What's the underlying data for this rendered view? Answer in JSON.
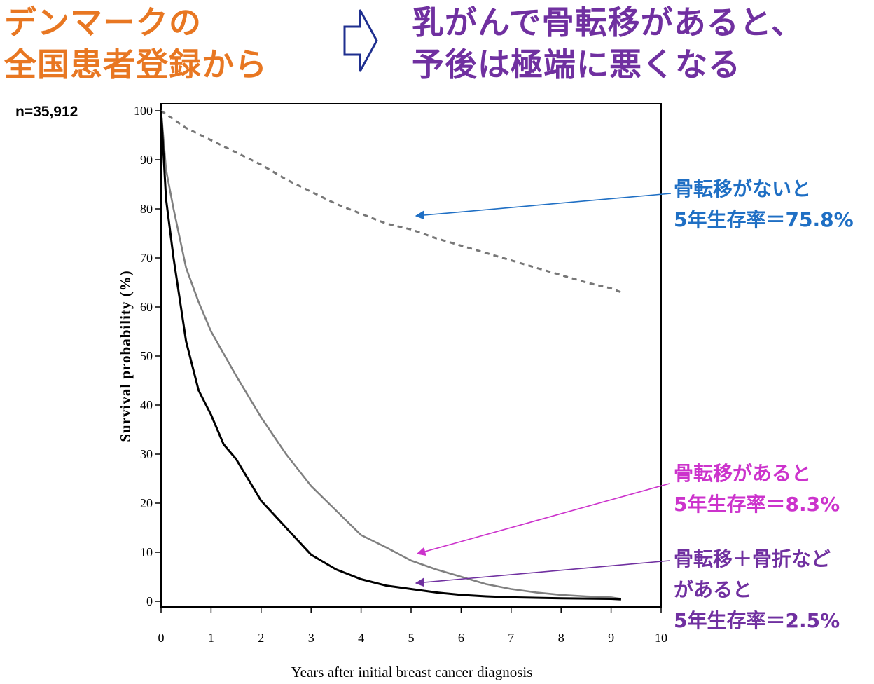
{
  "header": {
    "left_title_line1": "デンマークの",
    "left_title_line2": "全国患者登録から",
    "right_title_line1": "乳がんで骨転移があると、",
    "right_title_line2": "予後は極端に悪くなる",
    "arrow_icon": "outline-right-arrow-icon"
  },
  "sample_size": "n=35,912",
  "annotations": {
    "no_bone_mets": {
      "line1": "骨転移がないと",
      "line2": "5年生存率＝75.8%",
      "color": "#1f6fc4"
    },
    "bone_mets": {
      "line1": "骨転移があると",
      "line2": "5年生存率＝8.3%",
      "color": "#cc33cc"
    },
    "bone_mets_sre": {
      "line1": "骨転移＋骨折など",
      "line2": "があると",
      "line3": "5年生存率＝2.5%",
      "color": "#7030a0"
    }
  },
  "chart_data": {
    "type": "line",
    "xlabel": "Years after initial breast cancer diagnosis",
    "ylabel": "Survival probability (%)",
    "xlim": [
      0,
      10
    ],
    "ylim": [
      0,
      100
    ],
    "x_ticks": [
      0,
      1,
      2,
      3,
      4,
      5,
      6,
      7,
      8,
      9,
      10
    ],
    "y_ticks": [
      0,
      10,
      20,
      30,
      40,
      50,
      60,
      70,
      80,
      90,
      100
    ],
    "grid": false,
    "series": [
      {
        "key": "no_bone_mets",
        "style": "dashed",
        "color": "#777777",
        "x": [
          0,
          0.5,
          1,
          1.5,
          2,
          2.5,
          3,
          3.5,
          4,
          4.5,
          5,
          5.5,
          6,
          6.5,
          7,
          7.5,
          8,
          8.5,
          9,
          9.2
        ],
        "y": [
          100,
          96.5,
          94,
          91.5,
          89,
          86,
          83.5,
          81,
          79,
          77,
          75.8,
          74,
          72.5,
          71,
          69.5,
          68,
          66.5,
          65,
          63.8,
          63
        ]
      },
      {
        "key": "bone_mets",
        "style": "solid",
        "color": "#808080",
        "x": [
          0,
          0.1,
          0.25,
          0.5,
          0.75,
          1,
          1.5,
          2,
          2.5,
          3,
          3.5,
          4,
          4.5,
          5,
          5.5,
          6,
          6.5,
          7,
          7.5,
          8,
          8.5,
          9,
          9.2
        ],
        "y": [
          100,
          88,
          80,
          68,
          61,
          55,
          46,
          37.5,
          30,
          23.5,
          18.5,
          13.5,
          11,
          8.3,
          6.5,
          5,
          3.5,
          2.5,
          1.8,
          1.3,
          1,
          0.8,
          0.5
        ]
      },
      {
        "key": "bone_mets_sre",
        "style": "solid",
        "color": "#000000",
        "x": [
          0,
          0.1,
          0.25,
          0.5,
          0.75,
          1,
          1.25,
          1.5,
          2,
          2.5,
          3,
          3.5,
          4,
          4.5,
          5,
          5.5,
          6,
          6.5,
          7,
          8,
          9,
          9.2
        ],
        "y": [
          100,
          82,
          70,
          53,
          43,
          38,
          32,
          29,
          20.5,
          15,
          9.5,
          6.5,
          4.5,
          3.2,
          2.5,
          1.8,
          1.3,
          1,
          0.8,
          0.6,
          0.5,
          0.4
        ]
      }
    ]
  }
}
